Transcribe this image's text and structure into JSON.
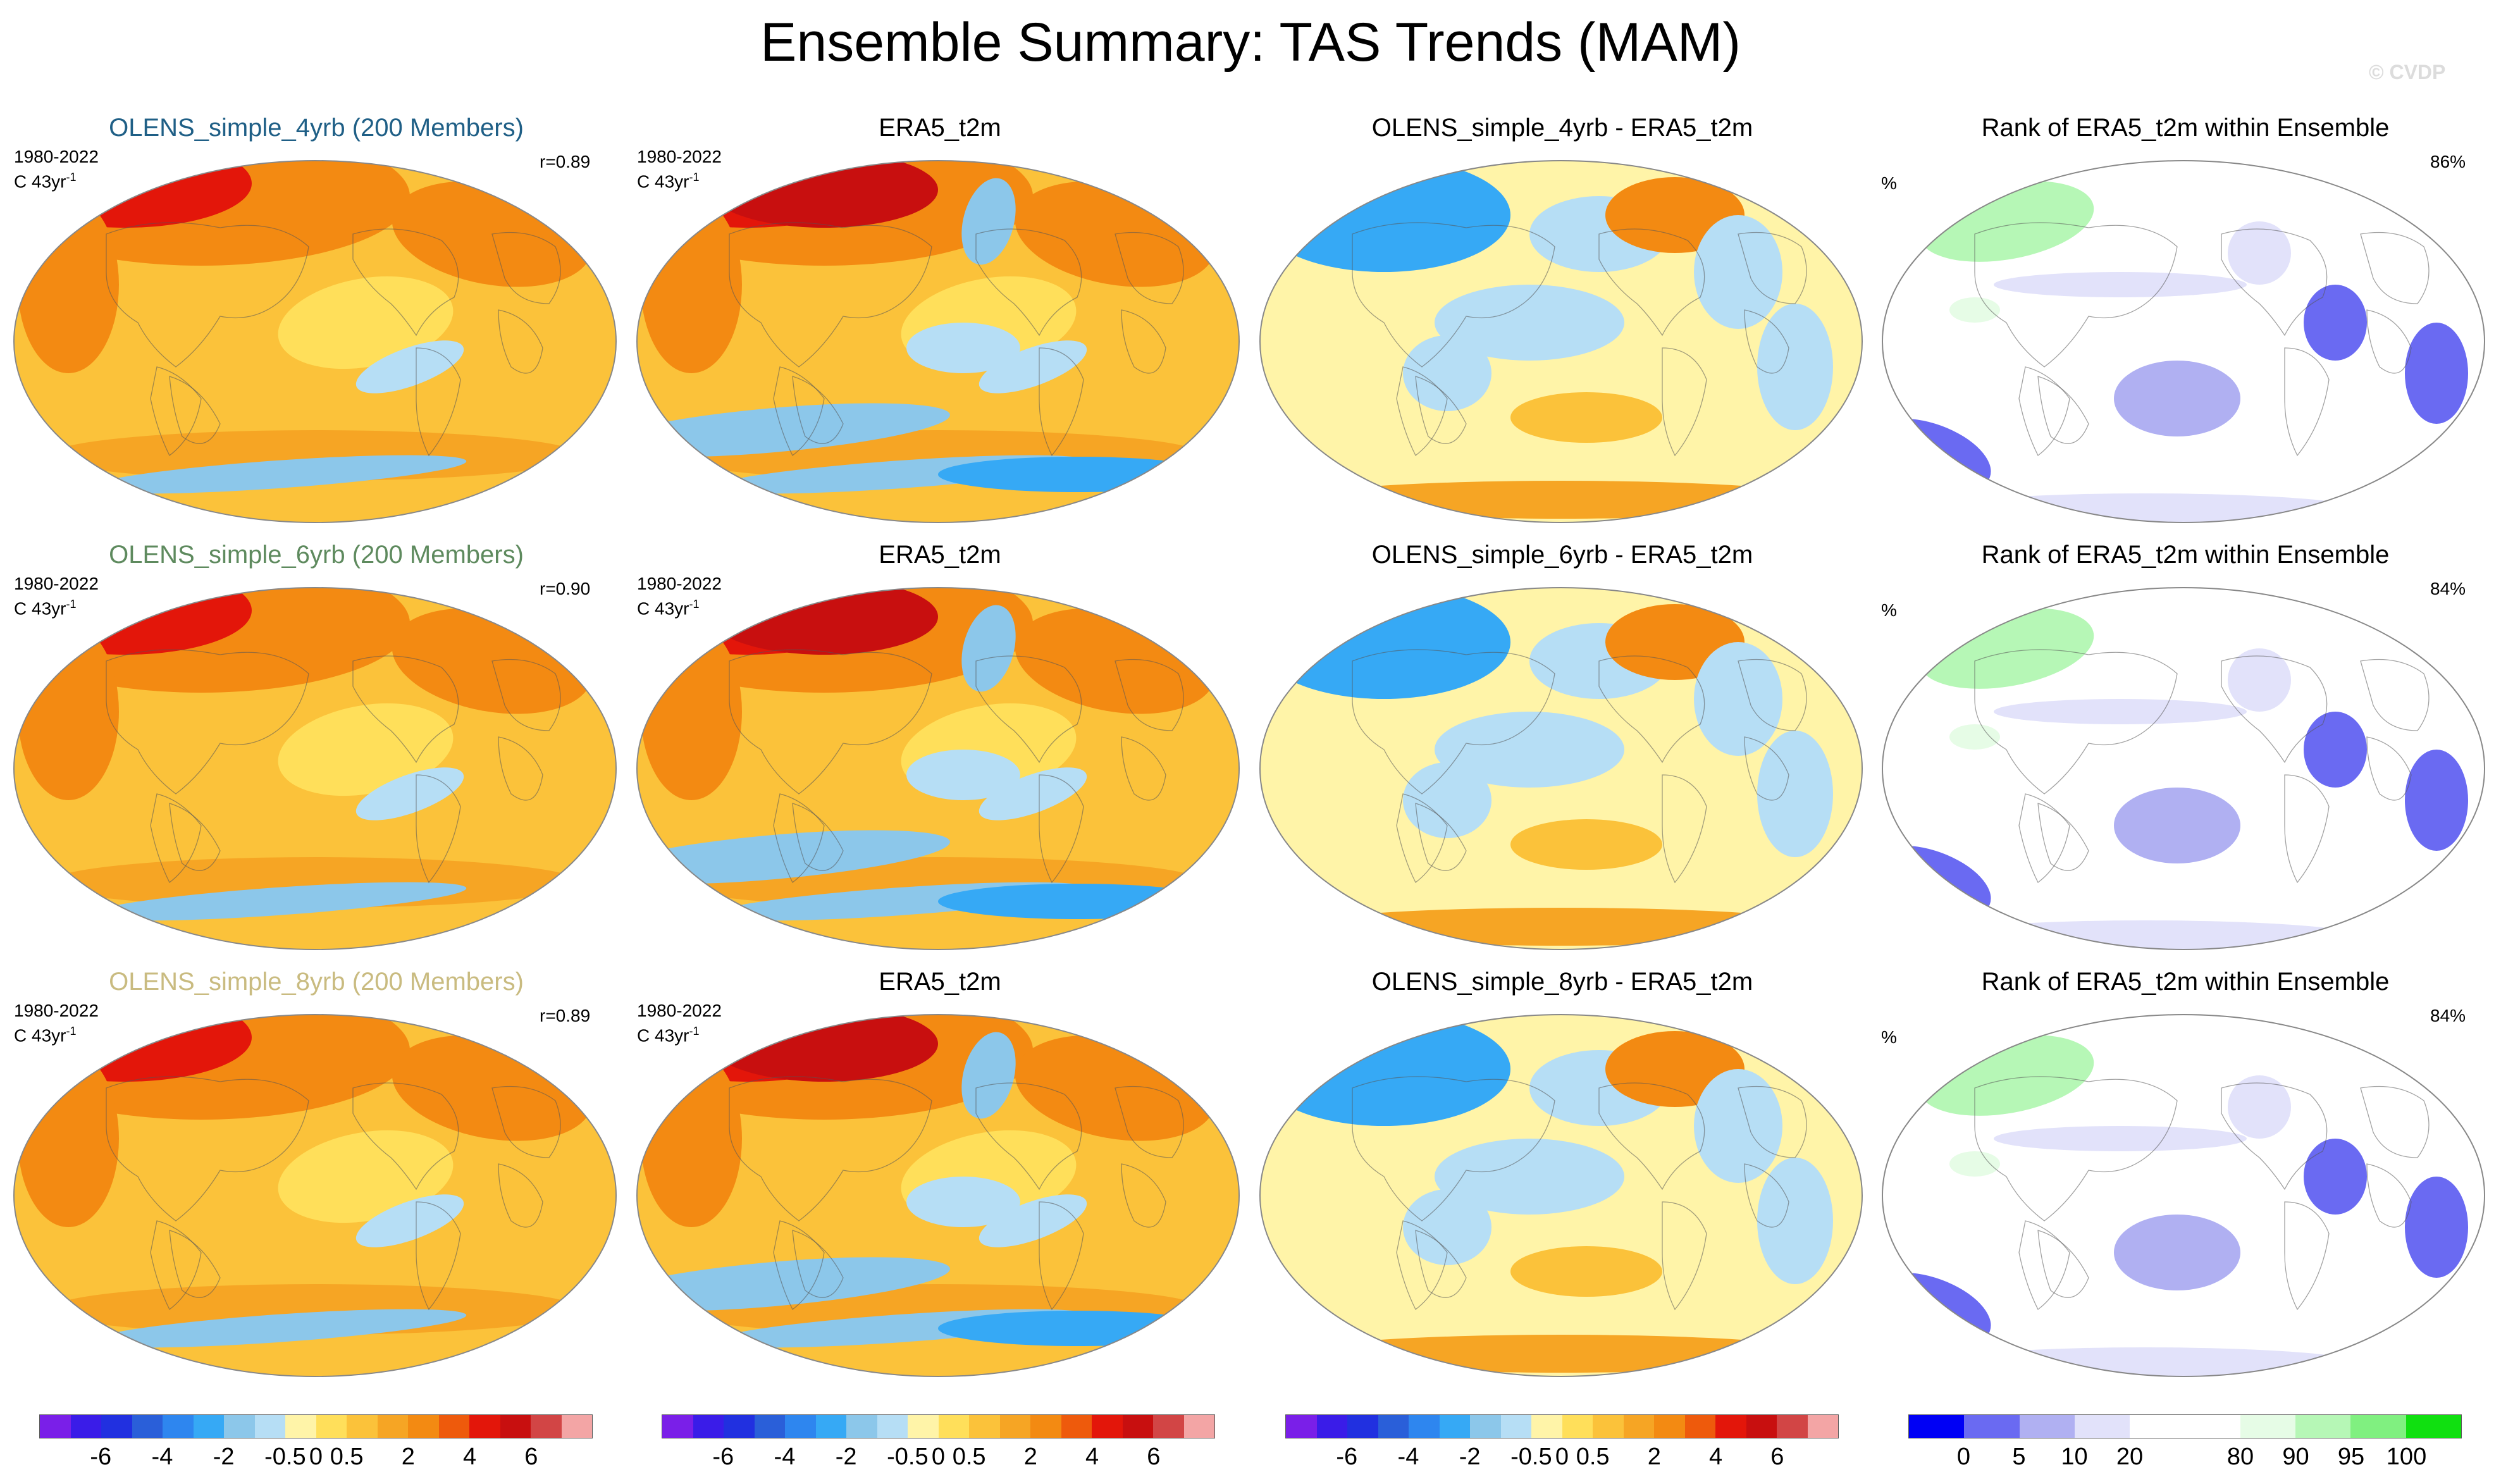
{
  "title": "Ensemble Summary: TAS Trends (MAM)",
  "watermark": "© CVDP",
  "rows": [
    {
      "ensemble_title": "OLENS_simple_4yrb (200 Members)",
      "ensemble_color": "#1f5f86",
      "period": "1980-2022",
      "units_label": "C 43yr",
      "units_exp": "-1",
      "r_value": "r=0.89",
      "obs_title": "ERA5_t2m",
      "diff_title": "OLENS_simple_4yrb - ERA5_t2m",
      "rank_title": "Rank of ERA5_t2m within Ensemble",
      "rank_units": "%",
      "rank_pct": "86%"
    },
    {
      "ensemble_title": "OLENS_simple_6yrb (200 Members)",
      "ensemble_color": "#5e8a5e",
      "period": "1980-2022",
      "units_label": "C 43yr",
      "units_exp": "-1",
      "r_value": "r=0.90",
      "obs_title": "ERA5_t2m",
      "diff_title": "OLENS_simple_6yrb - ERA5_t2m",
      "rank_title": "Rank of ERA5_t2m within Ensemble",
      "rank_units": "%",
      "rank_pct": "84%"
    },
    {
      "ensemble_title": "OLENS_simple_8yrb (200 Members)",
      "ensemble_color": "#c9bb80",
      "period": "1980-2022",
      "units_label": "C 43yr",
      "units_exp": "-1",
      "r_value": "r=0.89",
      "obs_title": "ERA5_t2m",
      "diff_title": "OLENS_simple_8yrb - ERA5_t2m",
      "rank_title": "Rank of ERA5_t2m within Ensemble",
      "rank_units": "%",
      "rank_pct": "84%"
    }
  ],
  "colorbars": {
    "trend": {
      "colors": [
        "#7a1fe8",
        "#3a1ce8",
        "#2130e0",
        "#2a5fd9",
        "#2e86ef",
        "#36a9f5",
        "#8cc7ea",
        "#b6def5",
        "#fff4a8",
        "#ffdf5a",
        "#fbc23a",
        "#f6a524",
        "#f38a12",
        "#ee5a0c",
        "#e3160a",
        "#c80f0f",
        "#d24545",
        "#f3a5a5"
      ],
      "ticks": [
        "-6",
        "-4",
        "-2",
        "-0.5",
        "0",
        "0.5",
        "2",
        "4",
        "6"
      ]
    },
    "rank": {
      "colors": [
        "#0000f5",
        "#6a6af2",
        "#b0b0f2",
        "#e2e2fa",
        "#ffffff",
        "#ffffff",
        "#e6fce6",
        "#b6f7b6",
        "#80f080",
        "#10e010"
      ],
      "ticks": [
        "0",
        "5",
        "10",
        "20",
        "80",
        "90",
        "95",
        "100"
      ]
    }
  },
  "chart_data": {
    "type": "heatmap",
    "title": "Ensemble Summary: TAS Trends (MAM)",
    "variable": "TAS (near-surface air temperature) trends, MAM",
    "period": "1980-2022",
    "units": "C 43yr-1",
    "panels": [
      {
        "row": 1,
        "column": "ensemble mean",
        "title": "OLENS_simple_4yrb (200 Members)",
        "pattern_correlation": 0.89
      },
      {
        "row": 1,
        "column": "observations",
        "title": "ERA5_t2m"
      },
      {
        "row": 1,
        "column": "difference",
        "title": "OLENS_simple_4yrb - ERA5_t2m"
      },
      {
        "row": 1,
        "column": "rank",
        "title": "Rank of ERA5_t2m within Ensemble",
        "percent": 86
      },
      {
        "row": 2,
        "column": "ensemble mean",
        "title": "OLENS_simple_6yrb (200 Members)",
        "pattern_correlation": 0.9
      },
      {
        "row": 2,
        "column": "observations",
        "title": "ERA5_t2m"
      },
      {
        "row": 2,
        "column": "difference",
        "title": "OLENS_simple_6yrb - ERA5_t2m"
      },
      {
        "row": 2,
        "column": "rank",
        "title": "Rank of ERA5_t2m within Ensemble",
        "percent": 84
      },
      {
        "row": 3,
        "column": "ensemble mean",
        "title": "OLENS_simple_8yrb (200 Members)",
        "pattern_correlation": 0.89
      },
      {
        "row": 3,
        "column": "observations",
        "title": "ERA5_t2m"
      },
      {
        "row": 3,
        "column": "difference",
        "title": "OLENS_simple_8yrb - ERA5_t2m"
      },
      {
        "row": 3,
        "column": "rank",
        "title": "Rank of ERA5_t2m within Ensemble",
        "percent": 84
      }
    ],
    "trend_levels": [
      -6,
      -4,
      -2,
      -0.5,
      0,
      0.5,
      2,
      4,
      6
    ],
    "rank_levels": [
      0,
      5,
      10,
      20,
      80,
      90,
      95,
      100
    ]
  }
}
